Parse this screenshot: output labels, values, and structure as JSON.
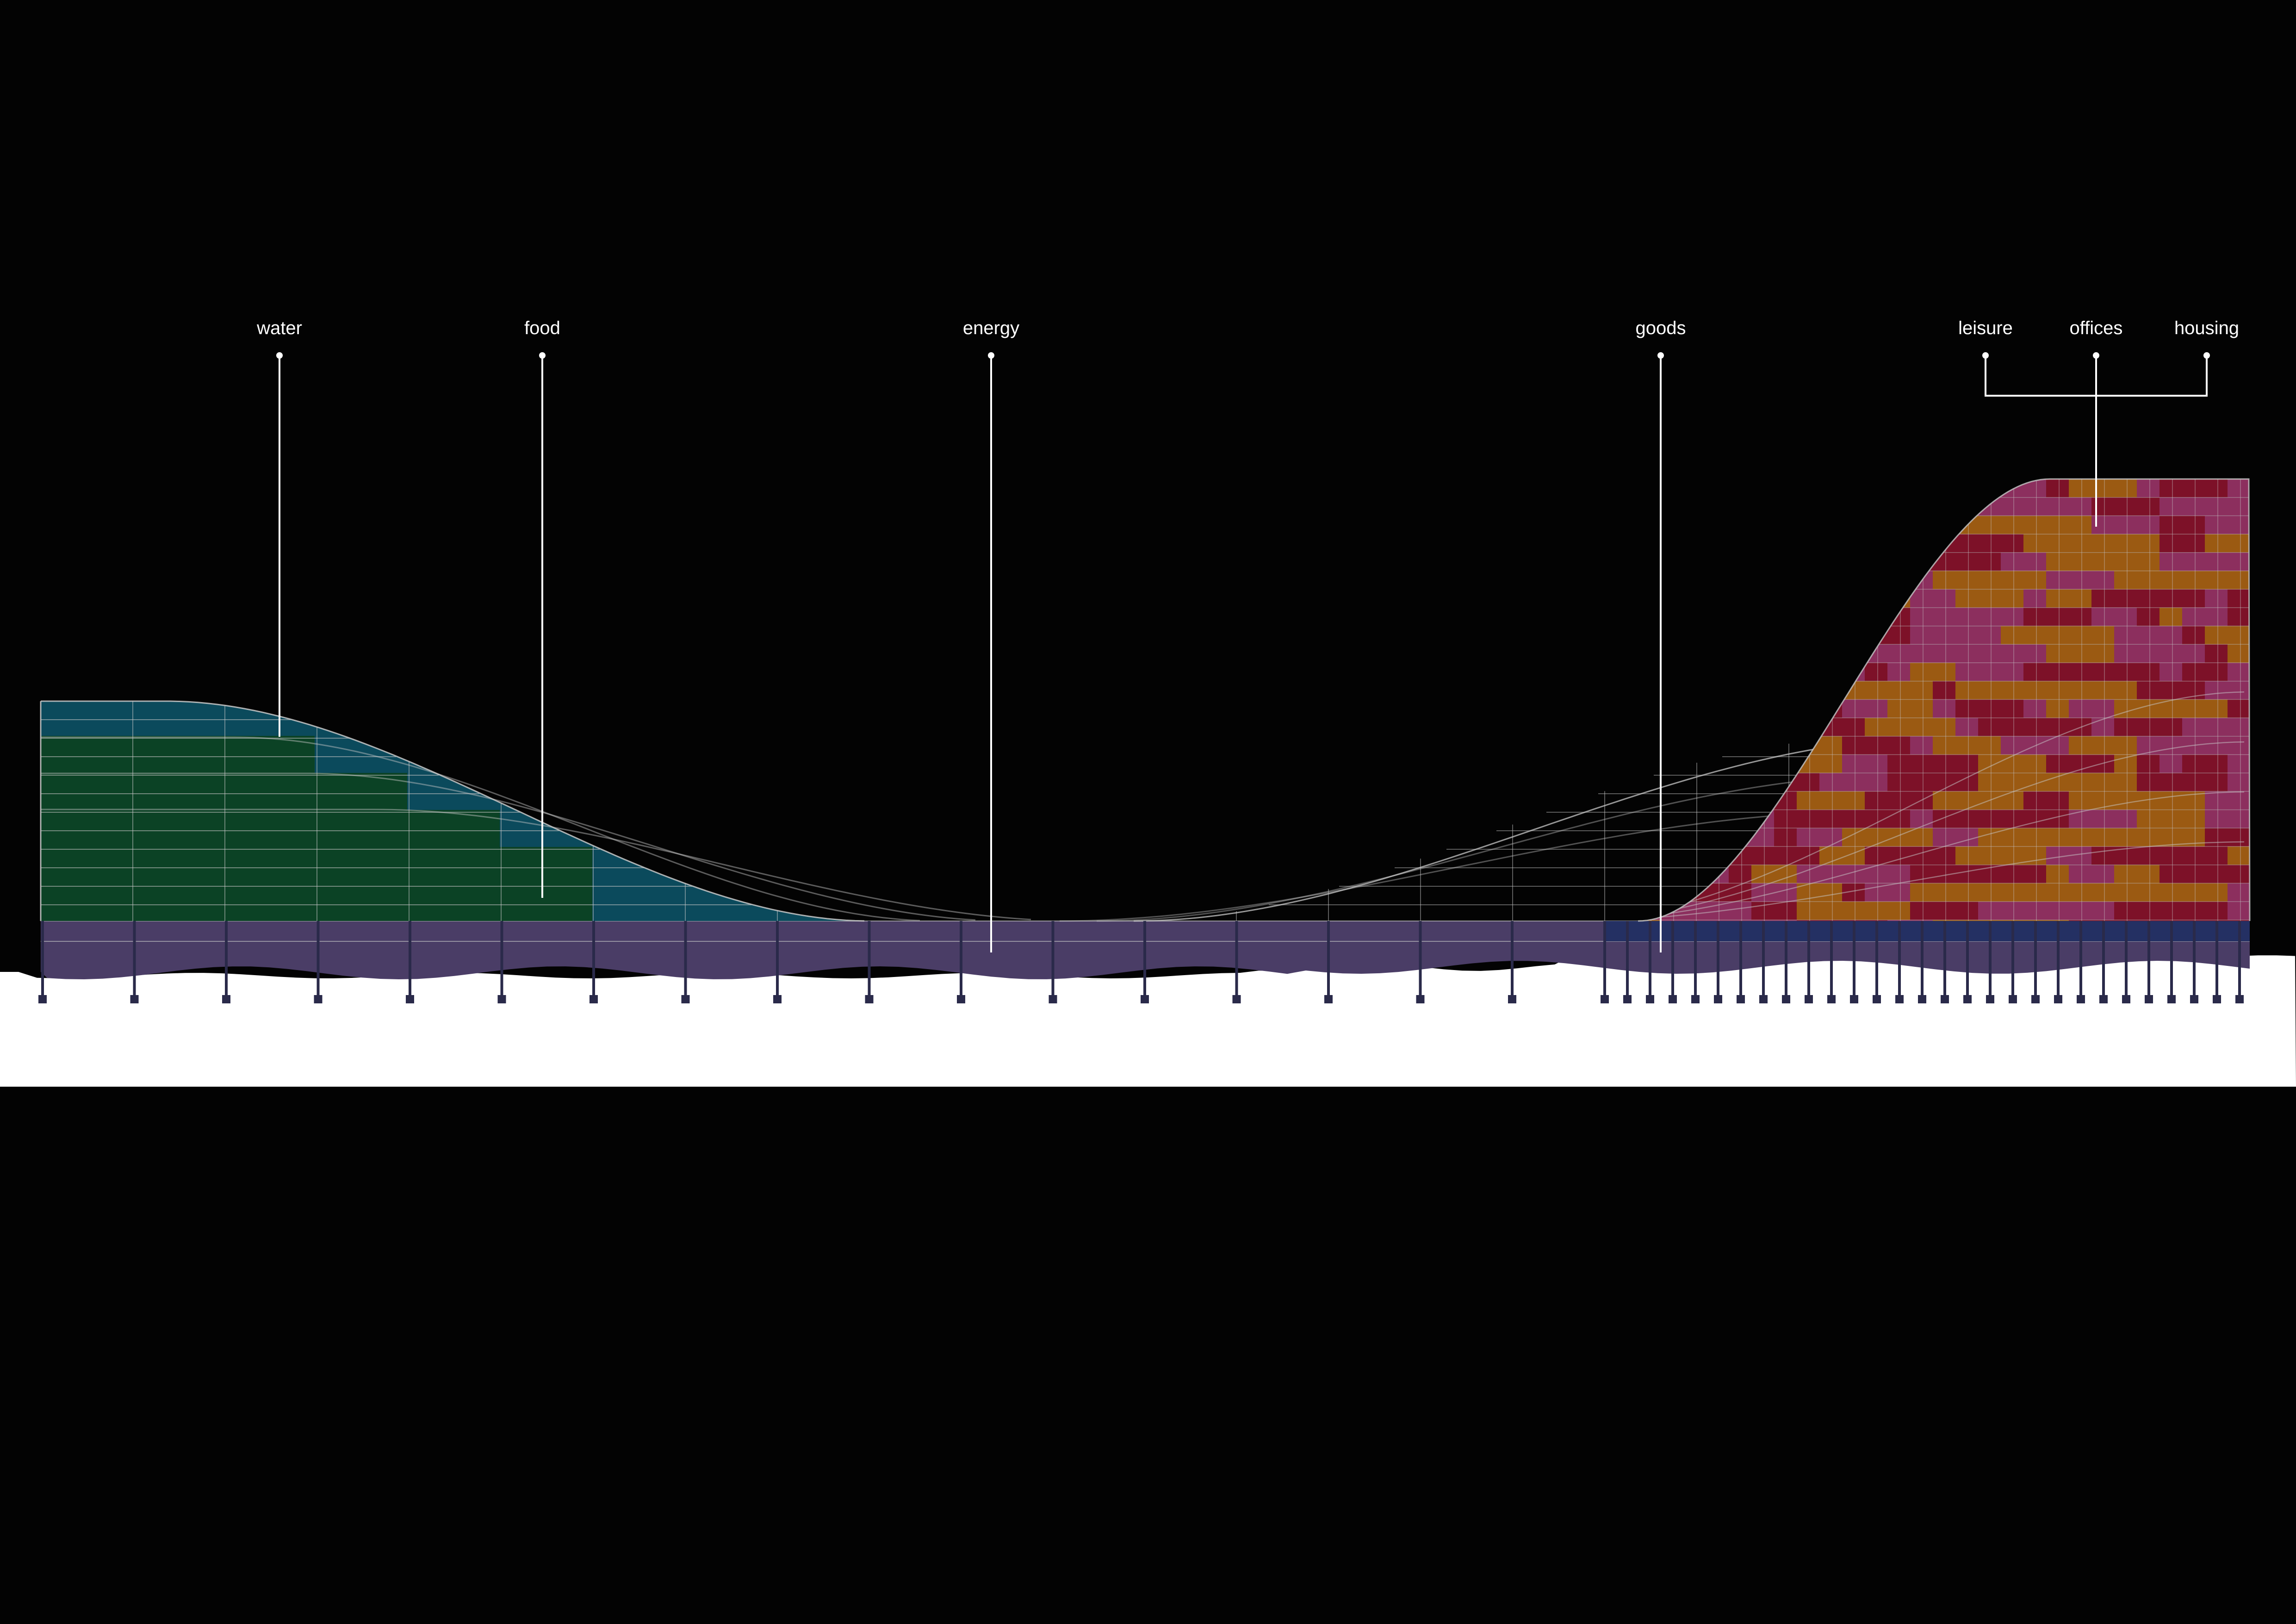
{
  "labels": {
    "water": "water",
    "food": "food",
    "energy": "energy",
    "goods": "goods",
    "leisure": "leisure",
    "offices": "offices",
    "housing": "housing"
  },
  "colors": {
    "background": "#030303",
    "ground": "#ffffff",
    "water": "#0b4a5c",
    "food": "#0b4225",
    "energy": "#4a3d66",
    "goods_base": "#243063",
    "leisure": "#9b5a12",
    "offices": "#8c2f5e",
    "housing": "#7d1128",
    "grid_line": "#c8c8c8",
    "leader": "#ffffff",
    "pile": "#2a2a4a"
  }
}
